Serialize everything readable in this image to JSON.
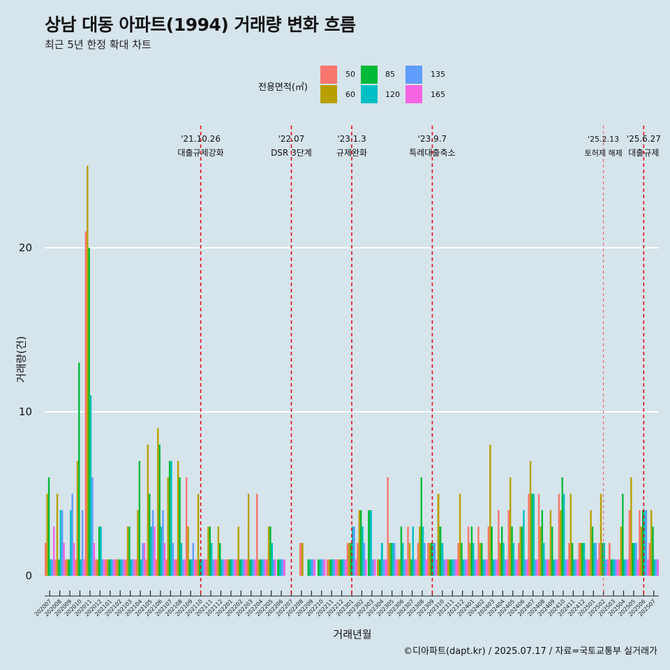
{
  "title": "상남 대동 아파트(1994) 거래량 변화 흐름",
  "subtitle": "최근 5년 한정 확대 차트",
  "caption": "©디아파트(dapt.kr) / 2025.07.17 / 자료=국토교통부 실거래가",
  "legend": {
    "title": "전용면적(㎡)",
    "items": [
      {
        "label": "50",
        "color": "#f8766d"
      },
      {
        "label": "60",
        "color": "#b79f00"
      },
      {
        "label": "85",
        "color": "#00ba38"
      },
      {
        "label": "120",
        "color": "#00bfc4"
      },
      {
        "label": "135",
        "color": "#619cff"
      },
      {
        "label": "165",
        "color": "#f564e3"
      }
    ]
  },
  "chart_data": {
    "type": "bar",
    "xlabel": "거래년월",
    "ylabel": "거래량(건)",
    "ylim": [
      0,
      25
    ],
    "yticks": [
      0,
      10,
      20
    ],
    "categories": [
      "202007",
      "202008",
      "202009",
      "202010",
      "202011",
      "202012",
      "202101",
      "202102",
      "202103",
      "202104",
      "202105",
      "202106",
      "202107",
      "202108",
      "202109",
      "202110",
      "202111",
      "202112",
      "202201",
      "202202",
      "202203",
      "202204",
      "202205",
      "202206",
      "202207",
      "202208",
      "202209",
      "202210",
      "202211",
      "202212",
      "202301",
      "202302",
      "202303",
      "202304",
      "202305",
      "202306",
      "202307",
      "202308",
      "202309",
      "202310",
      "202311",
      "202312",
      "202401",
      "202402",
      "202403",
      "202404",
      "202405",
      "202406",
      "202407",
      "202408",
      "202409",
      "202410",
      "202411",
      "202412",
      "202501",
      "202502",
      "202503",
      "202504",
      "202505",
      "202506",
      "202507"
    ],
    "series": [
      {
        "name": "50",
        "values": [
          2,
          1,
          1,
          1,
          21,
          1,
          1,
          1,
          1,
          1,
          1,
          1,
          1,
          1,
          6,
          1,
          1,
          1,
          1,
          1,
          1,
          5,
          1,
          null,
          null,
          2,
          null,
          null,
          1,
          1,
          2,
          2,
          null,
          null,
          6,
          1,
          3,
          2,
          2,
          null,
          null,
          2,
          3,
          3,
          3,
          4,
          4,
          2,
          5,
          5,
          1,
          5,
          2,
          2,
          1,
          2,
          2,
          1,
          4,
          4,
          2
        ]
      },
      {
        "name": "60",
        "values": [
          5,
          5,
          1,
          7,
          25,
          1,
          1,
          1,
          3,
          4,
          8,
          9,
          6,
          7,
          3,
          5,
          3,
          3,
          1,
          3,
          5,
          1,
          3,
          null,
          null,
          2,
          null,
          null,
          1,
          1,
          2,
          4,
          null,
          1,
          2,
          1,
          2,
          3,
          2,
          5,
          1,
          5,
          2,
          2,
          8,
          2,
          6,
          3,
          7,
          3,
          4,
          4,
          5,
          2,
          4,
          5,
          null,
          3,
          6,
          3,
          4
        ]
      },
      {
        "name": "85",
        "values": [
          6,
          1,
          1,
          13,
          20,
          3,
          1,
          1,
          3,
          7,
          5,
          8,
          7,
          6,
          1,
          1,
          3,
          2,
          1,
          1,
          1,
          1,
          3,
          1,
          null,
          null,
          1,
          1,
          1,
          1,
          2,
          4,
          4,
          1,
          2,
          3,
          1,
          6,
          2,
          3,
          1,
          2,
          3,
          2,
          3,
          3,
          3,
          3,
          5,
          4,
          3,
          6,
          2,
          2,
          3,
          2,
          1,
          5,
          2,
          4,
          3
        ]
      },
      {
        "name": "120",
        "values": [
          1,
          4,
          4,
          1,
          11,
          3,
          1,
          1,
          1,
          1,
          3,
          3,
          7,
          2,
          1,
          1,
          2,
          1,
          1,
          1,
          1,
          1,
          2,
          1,
          null,
          null,
          1,
          1,
          1,
          1,
          3,
          3,
          4,
          2,
          2,
          2,
          3,
          3,
          2,
          2,
          1,
          1,
          2,
          1,
          1,
          2,
          2,
          4,
          5,
          2,
          1,
          5,
          1,
          2,
          2,
          2,
          1,
          1,
          2,
          4,
          1
        ]
      },
      {
        "name": "135",
        "values": [
          1,
          4,
          5,
          4,
          6,
          1,
          1,
          1,
          1,
          2,
          4,
          4,
          2,
          1,
          2,
          1,
          1,
          1,
          1,
          1,
          1,
          1,
          1,
          1,
          null,
          null,
          1,
          1,
          1,
          1,
          3,
          2,
          1,
          1,
          2,
          1,
          1,
          2,
          2,
          1,
          1,
          1,
          1,
          1,
          1,
          1,
          1,
          1,
          1,
          1,
          1,
          1,
          1,
          1,
          2,
          1,
          1,
          1,
          2,
          4,
          1
        ]
      },
      {
        "name": "165",
        "values": [
          3,
          2,
          2,
          1,
          2,
          1,
          1,
          1,
          1,
          2,
          3,
          2,
          1,
          1,
          1,
          1,
          1,
          1,
          1,
          1,
          1,
          1,
          1,
          1,
          null,
          null,
          1,
          1,
          1,
          1,
          1,
          1,
          1,
          1,
          1,
          1,
          1,
          1,
          1,
          1,
          1,
          1,
          1,
          1,
          1,
          1,
          1,
          1,
          1,
          1,
          1,
          1,
          1,
          1,
          1,
          1,
          1,
          1,
          1,
          1,
          1
        ]
      }
    ],
    "events": [
      {
        "date_label": "'21.10.26",
        "text": "대출규제강화",
        "category": "202110",
        "style": "bold-dash"
      },
      {
        "date_label": "'22.07",
        "text": "DSR 3단계",
        "category": "202207",
        "style": "bold-dash"
      },
      {
        "date_label": "'23.1.3",
        "text": "규제완화",
        "category": "202301",
        "style": "bold-dash"
      },
      {
        "date_label": "'23.9.7",
        "text": "특례대출축소",
        "category": "202309",
        "style": "bold-dash"
      },
      {
        "date_label": "'25.2.13",
        "text": "토허제 해제",
        "category": "202502",
        "style": "thin-dash"
      },
      {
        "date_label": "'25.6.27",
        "text": "대출규제",
        "category": "202506",
        "style": "bold-dash"
      }
    ]
  }
}
